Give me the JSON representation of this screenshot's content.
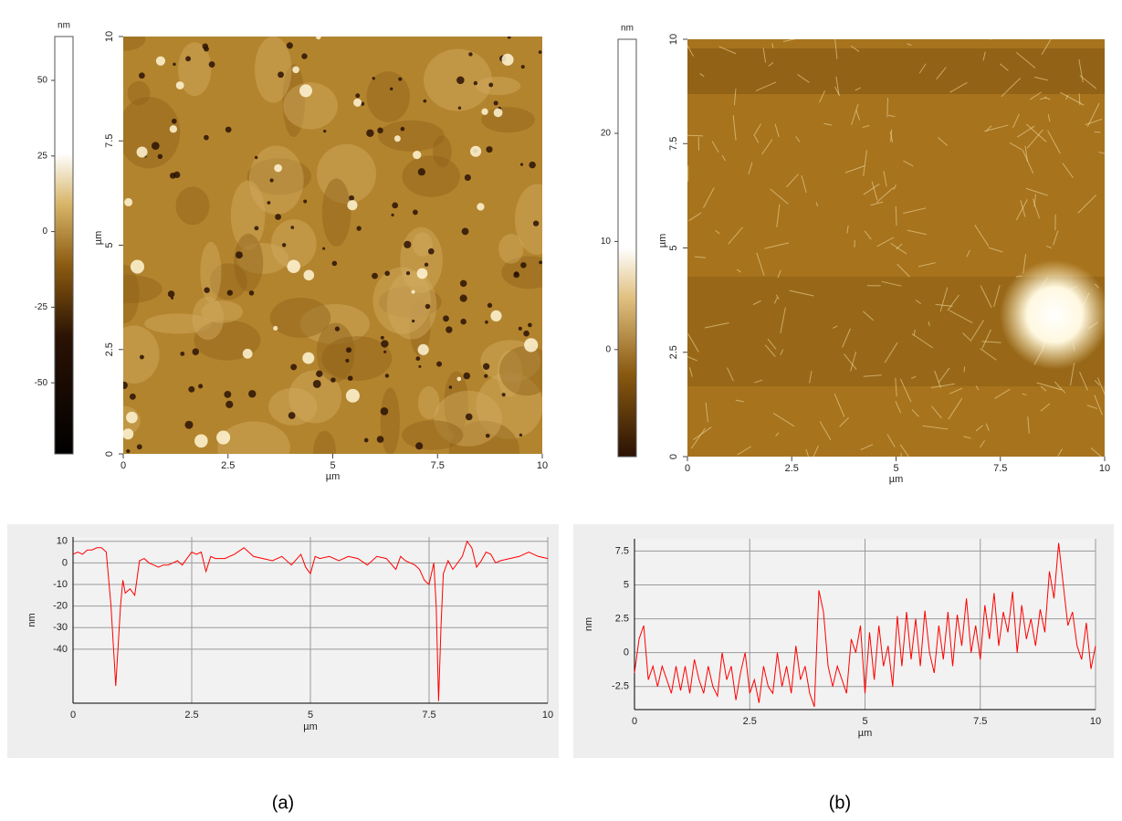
{
  "captions": [
    "(a)",
    "(b)"
  ],
  "chart_data": [
    {
      "type": "image",
      "xlabel": "µm",
      "ylabel": "µm",
      "xlim": [
        0,
        10
      ],
      "xticks": [
        0,
        2.5,
        5,
        7.5,
        10
      ],
      "ylim": [
        0,
        10
      ],
      "yticks": [
        0,
        2.5,
        5,
        7.5,
        10
      ],
      "colorbar": {
        "label": "nm",
        "lim": [
          -73.5,
          64.5
        ],
        "ticks": [
          50,
          25,
          0,
          -25,
          -50
        ]
      }
    },
    {
      "type": "line",
      "xlabel": "µm",
      "ylabel": "nm",
      "color": "#ff0000",
      "grid": true,
      "xlim": [
        0,
        10
      ],
      "xticks": [
        0,
        2.5,
        5,
        7.5,
        10
      ],
      "ylim": [
        -65,
        12
      ],
      "yticks": [
        10,
        0,
        -10,
        -20,
        -30,
        -40
      ],
      "x": [
        0,
        0.1,
        0.2,
        0.3,
        0.4,
        0.5,
        0.6,
        0.7,
        0.8,
        0.9,
        1.0,
        1.05,
        1.1,
        1.2,
        1.3,
        1.4,
        1.5,
        1.6,
        1.7,
        1.8,
        1.9,
        2.0,
        2.1,
        2.2,
        2.3,
        2.4,
        2.5,
        2.6,
        2.7,
        2.8,
        2.9,
        3.0,
        3.2,
        3.4,
        3.6,
        3.8,
        4.0,
        4.2,
        4.4,
        4.6,
        4.8,
        4.9,
        5.0,
        5.1,
        5.2,
        5.4,
        5.6,
        5.8,
        6.0,
        6.2,
        6.4,
        6.6,
        6.8,
        6.9,
        7.0,
        7.2,
        7.3,
        7.4,
        7.5,
        7.6,
        7.65,
        7.7,
        7.75,
        7.8,
        7.9,
        8.0,
        8.2,
        8.3,
        8.4,
        8.5,
        8.6,
        8.7,
        8.8,
        8.9,
        9.0,
        9.2,
        9.4,
        9.6,
        9.8,
        10
      ],
      "values": [
        4,
        5,
        4,
        6,
        6,
        7,
        7,
        5,
        -20,
        -57,
        -20,
        -8,
        -14,
        -12,
        -15,
        1,
        2,
        0,
        -1,
        -2,
        -1,
        -1,
        0,
        1,
        -1,
        2,
        5,
        4,
        5,
        -4,
        3,
        2,
        2,
        4,
        7,
        3,
        2,
        1,
        3,
        -1,
        4,
        -2,
        -5,
        3,
        2,
        3,
        1,
        3,
        2,
        -1,
        3,
        2,
        -3,
        3,
        1,
        -1,
        -3,
        -8,
        -10,
        0,
        -20,
        -64,
        -30,
        -5,
        1,
        -3,
        3,
        10,
        7,
        -2,
        1,
        5,
        4,
        0,
        1,
        2,
        3,
        5,
        3,
        2
      ]
    },
    {
      "type": "image",
      "xlabel": "µm",
      "ylabel": "µm",
      "xlim": [
        0,
        10
      ],
      "xticks": [
        0,
        2.5,
        5,
        7.5,
        10
      ],
      "ylim": [
        0,
        10
      ],
      "yticks": [
        0,
        2.5,
        5,
        7.5,
        10
      ],
      "colorbar": {
        "label": "nm",
        "lim": [
          -9.9,
          28.7
        ],
        "ticks": [
          20,
          10,
          0
        ]
      }
    },
    {
      "type": "line",
      "xlabel": "µm",
      "ylabel": "nm",
      "color": "#ff0000",
      "grid": true,
      "xlim": [
        0,
        10
      ],
      "xticks": [
        0,
        2.5,
        5,
        7.5,
        10
      ],
      "ylim": [
        -4.2,
        8.4
      ],
      "yticks": [
        7.5,
        5,
        2.5,
        0,
        -2.5
      ],
      "x": [
        0,
        0.1,
        0.2,
        0.3,
        0.4,
        0.5,
        0.6,
        0.7,
        0.8,
        0.9,
        1.0,
        1.1,
        1.2,
        1.3,
        1.4,
        1.5,
        1.6,
        1.7,
        1.8,
        1.9,
        2.0,
        2.1,
        2.2,
        2.3,
        2.4,
        2.5,
        2.6,
        2.7,
        2.8,
        2.9,
        3.0,
        3.1,
        3.2,
        3.3,
        3.4,
        3.5,
        3.6,
        3.7,
        3.8,
        3.9,
        4.0,
        4.1,
        4.2,
        4.3,
        4.4,
        4.5,
        4.6,
        4.7,
        4.8,
        4.9,
        5.0,
        5.1,
        5.2,
        5.3,
        5.4,
        5.5,
        5.6,
        5.7,
        5.8,
        5.9,
        6.0,
        6.1,
        6.2,
        6.3,
        6.4,
        6.5,
        6.6,
        6.7,
        6.8,
        6.9,
        7.0,
        7.1,
        7.2,
        7.3,
        7.4,
        7.5,
        7.6,
        7.7,
        7.8,
        7.9,
        8.0,
        8.1,
        8.2,
        8.3,
        8.4,
        8.5,
        8.6,
        8.7,
        8.8,
        8.9,
        9.0,
        9.1,
        9.2,
        9.3,
        9.4,
        9.5,
        9.6,
        9.7,
        9.8,
        9.9,
        10
      ],
      "values": [
        -1.5,
        1,
        2,
        -2,
        -1,
        -2.5,
        -1,
        -2,
        -3,
        -1,
        -2.8,
        -1,
        -3,
        -0.5,
        -2,
        -3,
        -1,
        -2.5,
        -3.2,
        0,
        -2,
        -1,
        -3.5,
        -1.5,
        0,
        -3,
        -2,
        -3.7,
        -1,
        -2.5,
        -3,
        0,
        -2.5,
        -1,
        -3,
        0.5,
        -2,
        -1,
        -3,
        -4,
        4.6,
        3,
        -1,
        -2.5,
        -1,
        -2,
        -3,
        1,
        0,
        2,
        -3,
        1.5,
        -2,
        2,
        -1,
        0.5,
        -2.5,
        2.7,
        -1,
        3,
        -0.5,
        2.5,
        -1,
        3.1,
        0,
        -1.5,
        2,
        -0.5,
        3,
        -1,
        2.8,
        0.5,
        4,
        0,
        2,
        -0.5,
        3.5,
        1,
        4.4,
        0.5,
        3,
        1.5,
        4.5,
        0,
        3.5,
        1,
        2.5,
        0.5,
        3.2,
        1.5,
        6,
        4,
        8.1,
        5,
        2,
        3,
        0.5,
        -0.5,
        2.2,
        -1.2,
        0.5
      ]
    }
  ]
}
